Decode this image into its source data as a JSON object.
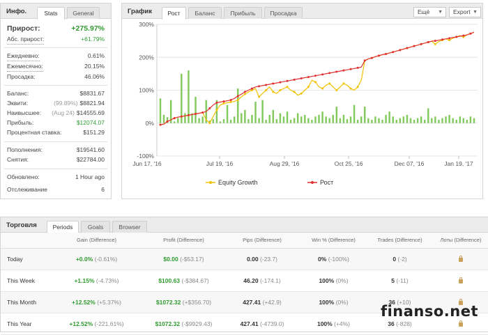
{
  "info": {
    "title": "Инфо.",
    "tabs": [
      "Stats",
      "General"
    ],
    "gain_label": "Прирост:",
    "gain_value": "+275.97%",
    "abs_gain_label": "Абс. прирост:",
    "abs_gain_value": "+61.79%",
    "daily_label": "Ежедневно:",
    "daily_value": "0.61%",
    "monthly_label": "Ежемесячно:",
    "monthly_value": "20.15%",
    "drawdown_label": "Просадка:",
    "drawdown_value": "46.06%",
    "balance_label": "Баланс:",
    "balance_value": "$8831.67",
    "equity_label": "Эквити:",
    "equity_note": "(99.89%)",
    "equity_value": "$8821.94",
    "highest_label": "Наивысшее:",
    "highest_note": "(Aug 24)",
    "highest_value": "$14555.69",
    "profit_label": "Прибыль:",
    "profit_value": "$12074.07",
    "interest_label": "Процентная ставка:",
    "interest_value": "$151.29",
    "deposits_label": "Пополнения:",
    "deposits_value": "$19541.60",
    "withdrawals_label": "Снятия:",
    "withdrawals_value": "$22784.00",
    "updated_label": "Обновлено:",
    "updated_value": "1 Hour ago",
    "tracking_label": "Отслеживание",
    "tracking_value": "6"
  },
  "chart_panel": {
    "title": "График",
    "tabs": [
      "Рост",
      "Баланс",
      "Прибыль",
      "Просадка"
    ],
    "more_label": "Ещё",
    "export_label": "Export"
  },
  "chart_data": {
    "type": "line",
    "y_ticks": [
      "300%",
      "200%",
      "100%",
      "0%",
      "-100%"
    ],
    "x_ticks": [
      "Jun 17, '16",
      "Jul 19, '16",
      "Aug 29, '16",
      "Oct 25, '16",
      "Dec 07, '16",
      "Jan 19, '17"
    ],
    "ylim": [
      -100,
      300
    ],
    "grid": true,
    "legend_position": "bottom",
    "series": [
      {
        "name": "Equity Growth",
        "color": "#f2c200",
        "values": [
          -5,
          -3,
          5,
          10,
          15,
          18,
          20,
          22,
          24,
          26,
          28,
          30,
          32,
          10,
          0,
          20,
          40,
          55,
          60,
          62,
          64,
          66,
          70,
          80,
          88,
          95,
          100,
          105,
          80,
          90,
          100,
          110,
          95,
          90,
          100,
          105,
          110,
          100,
          95,
          85,
          90,
          100,
          110,
          130,
          125,
          110,
          105,
          115,
          120,
          110,
          100,
          110,
          120,
          115,
          105,
          100,
          110,
          130,
          190,
          195,
          198,
          202,
          205,
          208,
          210,
          213,
          216,
          219,
          222,
          225,
          228,
          231,
          234,
          237,
          240,
          243,
          246,
          249,
          240,
          248,
          252,
          256,
          252,
          258,
          262,
          266,
          262,
          268,
          272,
          276
        ]
      },
      {
        "name": "Рост",
        "color": "#e03030",
        "values": [
          -5,
          -3,
          5,
          10,
          15,
          18,
          20,
          22,
          24,
          26,
          28,
          30,
          32,
          35,
          45,
          55,
          62,
          64,
          66,
          68,
          70,
          75,
          82,
          88,
          95,
          100,
          105,
          110,
          112,
          114,
          116,
          118,
          120,
          122,
          124,
          126,
          128,
          130,
          132,
          134,
          136,
          138,
          140,
          142,
          144,
          146,
          148,
          150,
          152,
          154,
          156,
          158,
          160,
          162,
          164,
          166,
          168,
          170,
          190,
          195,
          198,
          202,
          205,
          208,
          210,
          213,
          216,
          219,
          222,
          225,
          228,
          231,
          234,
          237,
          240,
          243,
          246,
          249,
          250,
          252,
          254,
          256,
          258,
          260,
          262,
          264,
          266,
          268,
          272,
          276
        ]
      },
      {
        "name": "bars",
        "color": "#6abf3d",
        "values": [
          75,
          25,
          18,
          70,
          5,
          15,
          150,
          30,
          160,
          30,
          80,
          15,
          20,
          70,
          8,
          12,
          70,
          5,
          12,
          55,
          10,
          20,
          105,
          30,
          40,
          12,
          25,
          65,
          15,
          70,
          10,
          25,
          40,
          12,
          30,
          20,
          35,
          10,
          15,
          30,
          20,
          25,
          15,
          10,
          20,
          25,
          35,
          20,
          15,
          25,
          50,
          15,
          25,
          12,
          20,
          55,
          10,
          20,
          50,
          15,
          10,
          20,
          15,
          10,
          25,
          35,
          20,
          10,
          15,
          20,
          25,
          15,
          10,
          15,
          20,
          10,
          45,
          15,
          20,
          10,
          15,
          20,
          25,
          15,
          10,
          20,
          15,
          10,
          20,
          15
        ]
      }
    ]
  },
  "trading": {
    "title": "Торговля",
    "tabs": [
      "Periods",
      "Goals",
      "Browser"
    ],
    "headers": [
      "Gain (Difference)",
      "Profit (Difference)",
      "Pips (Difference)",
      "Win % (Difference)",
      "Trades (Difference)",
      "Лоты (Difference)"
    ],
    "rows": [
      {
        "period": "Today",
        "gain": "+0.0%",
        "gain_diff": "(-0.61%)",
        "profit": "$0.00",
        "profit_diff": "(-$53.17)",
        "pips": "0.00",
        "pips_diff": "(-23.7)",
        "win": "0%",
        "win_diff": "(-100%)",
        "trades": "0",
        "trades_diff": "(-2)"
      },
      {
        "period": "This Week",
        "gain": "+1.15%",
        "gain_diff": "(-4.73%)",
        "profit": "$100.63",
        "profit_diff": "(-$384.67)",
        "pips": "46.20",
        "pips_diff": "(-174.1)",
        "win": "100%",
        "win_diff": "(0%)",
        "trades": "5",
        "trades_diff": "(-11)"
      },
      {
        "period": "This Month",
        "gain": "+12.52%",
        "gain_diff": "(+5.37%)",
        "profit": "$1072.32",
        "profit_diff": "(+$356.70)",
        "pips": "427.41",
        "pips_diff": "(+42.9)",
        "win": "100%",
        "win_diff": "(0%)",
        "trades": "36",
        "trades_diff": "(+10)"
      },
      {
        "period": "This Year",
        "gain": "+12.52%",
        "gain_diff": "(-221.61%)",
        "profit": "$1072.32",
        "profit_diff": "(-$9929.43)",
        "pips": "427.41",
        "pips_diff": "(-4739.0)",
        "win": "100%",
        "win_diff": "(+4%)",
        "trades": "36",
        "trades_diff": "(-828)"
      }
    ]
  },
  "watermark": "finanso.net"
}
